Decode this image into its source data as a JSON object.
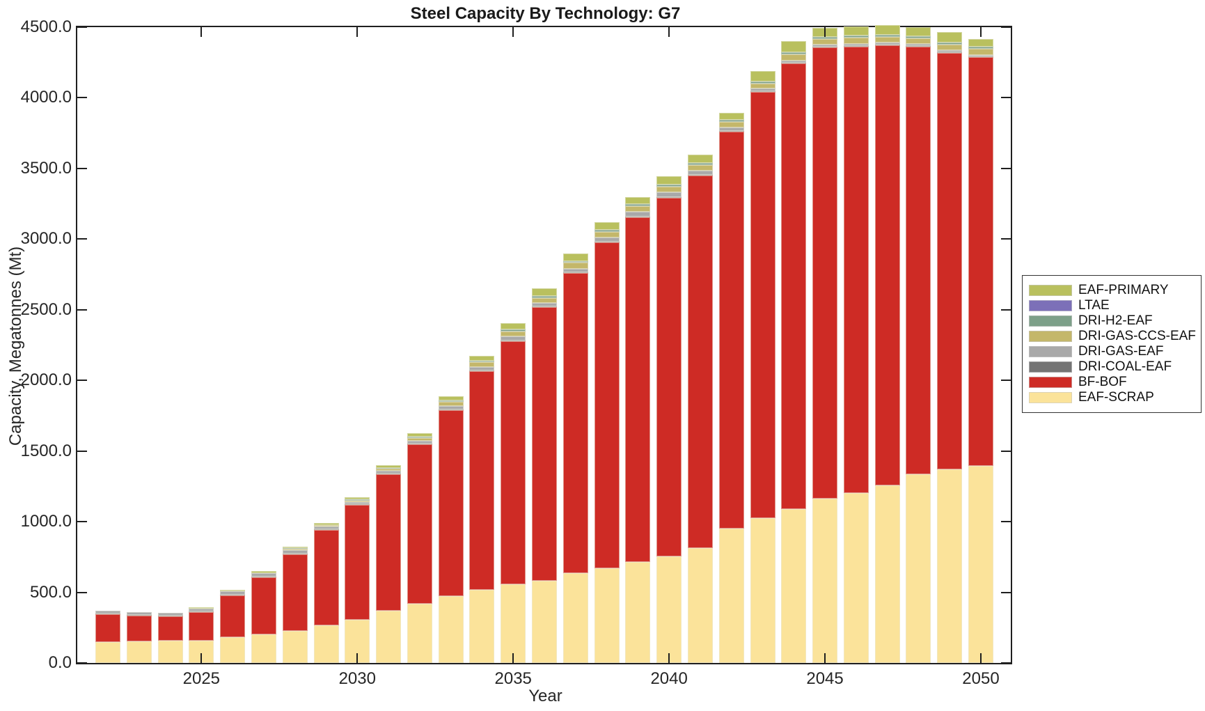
{
  "figure": {
    "title": "Steel Capacity By Technology: G7",
    "xlabel": "Year",
    "ylabel": "Capacity, Megatonnes (Mt)"
  },
  "axes": {
    "ylim": [
      0,
      4500
    ],
    "y_tick_values": [
      0,
      500,
      1000,
      1500,
      2000,
      2500,
      3000,
      3500,
      4000,
      4500
    ],
    "y_tick_labels": [
      "0.0",
      "500.0",
      "1000.0",
      "1500.0",
      "2000.0",
      "2500.0",
      "3000.0",
      "3500.0",
      "4000.0",
      "4500.0"
    ],
    "x_tick_years": [
      2025,
      2030,
      2035,
      2040,
      2045,
      2050
    ],
    "x_tick_labels": [
      "2025",
      "2030",
      "2035",
      "2040",
      "2045",
      "2050"
    ]
  },
  "legend": {
    "items": [
      {
        "label": "EAF-PRIMARY",
        "color": "#b9c05e"
      },
      {
        "label": "LTAE",
        "color": "#7c70b8"
      },
      {
        "label": "DRI-H2-EAF",
        "color": "#7da089"
      },
      {
        "label": "DRI-GAS-CCS-EAF",
        "color": "#c4b76a"
      },
      {
        "label": "DRI-GAS-EAF",
        "color": "#a9a9a9"
      },
      {
        "label": "DRI-COAL-EAF",
        "color": "#747474"
      },
      {
        "label": "BF-BOF",
        "color": "#ce2b25"
      },
      {
        "label": "EAF-SCRAP",
        "color": "#fbe39a"
      }
    ]
  },
  "chart_data": {
    "type": "bar",
    "stacked": true,
    "title": "Steel Capacity By Technology: G7",
    "xlabel": "Year",
    "ylabel": "Capacity, Megatonnes (Mt)",
    "ylim": [
      0,
      4500
    ],
    "grid": false,
    "legend_position": "right-outside",
    "years": [
      2022,
      2023,
      2024,
      2025,
      2026,
      2027,
      2028,
      2029,
      2030,
      2031,
      2032,
      2033,
      2034,
      2035,
      2036,
      2037,
      2038,
      2039,
      2040,
      2041,
      2042,
      2043,
      2044,
      2045,
      2046,
      2047,
      2048,
      2049,
      2050
    ],
    "units": "Mt",
    "series": [
      {
        "name": "EAF-SCRAP",
        "color": "#fbe39a",
        "values": [
          150,
          153,
          158,
          160,
          184,
          203,
          225,
          268,
          305,
          371,
          417,
          473,
          517,
          555,
          583,
          635,
          670,
          714,
          755,
          812,
          952,
          1027,
          1089,
          1162,
          1204,
          1257,
          1334,
          1371,
          1396
        ]
      },
      {
        "name": "BF-BOF",
        "color": "#ce2b25",
        "values": [
          196,
          184,
          173,
          200,
          294,
          402,
          544,
          672,
          813,
          967,
          1129,
          1318,
          1547,
          1724,
          1937,
          2123,
          2306,
          2442,
          2539,
          2638,
          2807,
          3017,
          3156,
          3195,
          3160,
          3115,
          3026,
          2948,
          2890
        ]
      },
      {
        "name": "DRI-COAL-EAF",
        "color": "#747474",
        "values": [
          4,
          4,
          4,
          4,
          4,
          4,
          4,
          4,
          4,
          4,
          5,
          5,
          5,
          5,
          5,
          5,
          5,
          5,
          5,
          5,
          5,
          5,
          5,
          5,
          5,
          5,
          5,
          5,
          5
        ]
      },
      {
        "name": "DRI-GAS-EAF",
        "color": "#a9a9a9",
        "values": [
          20,
          21,
          22,
          20,
          24,
          27,
          28,
          21,
          18,
          19,
          23,
          23,
          27,
          28,
          25,
          28,
          31,
          31,
          31,
          32,
          27,
          15,
          15,
          16,
          15,
          15,
          15,
          14,
          14
        ]
      },
      {
        "name": "DRI-GAS-CCS-EAF",
        "color": "#c4b76a",
        "values": [
          0,
          0,
          0,
          2,
          2,
          2,
          8,
          9,
          10,
          14,
          20,
          28,
          32,
          36,
          32,
          41,
          41,
          42,
          42,
          36,
          41,
          36,
          42,
          40,
          40,
          40,
          40,
          40,
          41
        ]
      },
      {
        "name": "DRI-H2-EAF",
        "color": "#7da089",
        "values": [
          0,
          0,
          0,
          0,
          0,
          0,
          2,
          4,
          6,
          7,
          8,
          10,
          11,
          12,
          14,
          13,
          14,
          13,
          13,
          14,
          14,
          16,
          14,
          15,
          15,
          15,
          15,
          15,
          14
        ]
      },
      {
        "name": "LTAE",
        "color": "#7c70b8",
        "values": [
          0,
          0,
          0,
          0,
          0,
          0,
          0,
          0,
          0,
          0,
          0,
          0,
          0,
          0,
          0,
          0,
          0,
          0,
          0,
          0,
          0,
          0,
          0,
          0,
          0,
          0,
          0,
          0,
          0
        ]
      },
      {
        "name": "EAF-PRIMARY",
        "color": "#b9c05e",
        "values": [
          0,
          0,
          0,
          8,
          12,
          14,
          12,
          12,
          16,
          18,
          25,
          31,
          37,
          47,
          54,
          51,
          51,
          51,
          58,
          61,
          48,
          74,
          79,
          60,
          66,
          68,
          63,
          72,
          55
        ]
      }
    ]
  }
}
